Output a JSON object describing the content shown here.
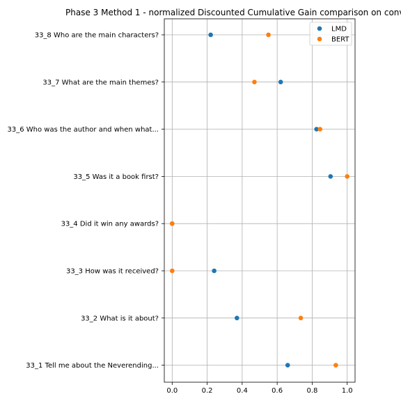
{
  "chart_data": {
    "type": "scatter",
    "title": "Phase 3 Method 1 - normalized Discounted Cumulative Gain comparison on conv",
    "xlabel": "",
    "ylabel": "",
    "xlim": [
      -0.045,
      1.045
    ],
    "x_ticks": [
      "0.0",
      "0.2",
      "0.4",
      "0.6",
      "0.8",
      "1.0"
    ],
    "x_tick_values": [
      0.0,
      0.2,
      0.4,
      0.6,
      0.8,
      1.0
    ],
    "grid": true,
    "legend": "top-right",
    "categories": [
      "33_8 Who are the main characters?",
      "33_7 What are the main themes?",
      "33_6 Who was the author and when what...",
      "33_5 Was it a book first?",
      "33_4 Did it win any awards?",
      "33_3 How was it received?",
      "33_2 What is it about?",
      "33_1 Tell me about the Neverending..."
    ],
    "series": [
      {
        "name": "LMD",
        "color": "#1f77b4",
        "values": [
          0.22,
          0.62,
          0.825,
          0.905,
          0.0,
          0.24,
          0.37,
          0.66
        ]
      },
      {
        "name": "BERT",
        "color": "#ff7f0e",
        "values": [
          0.55,
          0.47,
          0.845,
          1.0,
          0.0,
          0.0,
          0.735,
          0.935
        ]
      }
    ]
  }
}
